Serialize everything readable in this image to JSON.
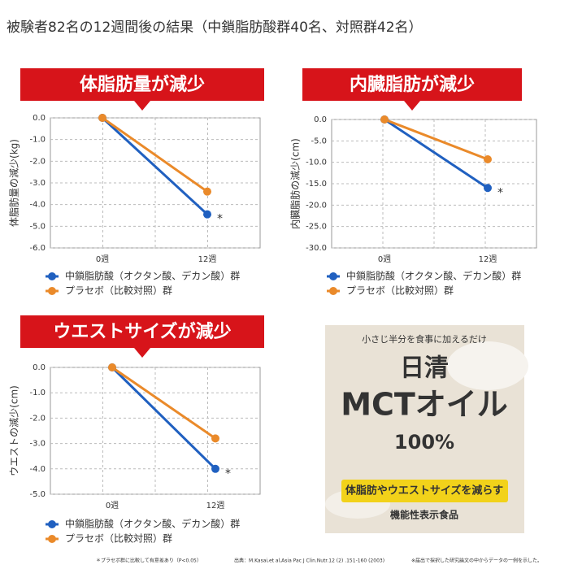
{
  "header": {
    "title": "被験者82名の12週間後の結果（中鎖脂肪酸群40名、対照群42名）"
  },
  "chart_data": [
    {
      "type": "line",
      "title": "体脂肪量が減少",
      "y_label": "体脂肪量の減少(kg)",
      "categories": [
        "0週",
        "12週"
      ],
      "series": [
        {
          "name": "中鎖脂肪酸（オクタン酸、デカン酸）群",
          "color": "#2060c0",
          "values": [
            0,
            -4.45
          ]
        },
        {
          "name": "プラセボ（比較対照）群",
          "color": "#ea8a2a",
          "values": [
            0,
            -3.4
          ]
        }
      ],
      "ylim": [
        -6,
        0
      ],
      "yticks": [
        {
          "value": 0,
          "label": "0.0"
        },
        {
          "value": -1,
          "label": "-1.0"
        },
        {
          "value": -2,
          "label": "-2.0"
        },
        {
          "value": -3,
          "label": "-3.0"
        },
        {
          "value": -4,
          "label": "-4.0"
        },
        {
          "value": -5,
          "label": "-5.0"
        },
        {
          "value": -6,
          "label": "-6.0"
        }
      ],
      "grid": true,
      "annotation": "*"
    },
    {
      "type": "line",
      "title": "内臓脂肪が減少",
      "y_label": "内臓脂肪の減少(cm)",
      "categories": [
        "0週",
        "12週"
      ],
      "series": [
        {
          "name": "中鎖脂肪酸（オクタン酸、デカン酸）群",
          "color": "#2060c0",
          "values": [
            0,
            -16
          ]
        },
        {
          "name": "プラセボ（比較対照）群",
          "color": "#ea8a2a",
          "values": [
            0,
            -9.3
          ]
        }
      ],
      "ylim": [
        -30,
        0
      ],
      "yticks": [
        {
          "value": 0,
          "label": "0.0"
        },
        {
          "value": -5,
          "label": "-5.0"
        },
        {
          "value": -10,
          "label": "-10.0"
        },
        {
          "value": -15,
          "label": "-15.0"
        },
        {
          "value": -20,
          "label": "-20.0"
        },
        {
          "value": -25,
          "label": "-25.0"
        },
        {
          "value": -30,
          "label": "-30.0"
        }
      ],
      "grid": true,
      "annotation": "*"
    },
    {
      "type": "line",
      "title": "ウエストサイズが減少",
      "y_label": "ウエストの減少(cm)",
      "categories": [
        "0週",
        "12週"
      ],
      "series": [
        {
          "name": "中鎖脂肪酸（オクタン酸、デカン酸）群",
          "color": "#2060c0",
          "values": [
            0,
            -4.0
          ]
        },
        {
          "name": "プラセボ（比較対照）群",
          "color": "#ea8a2a",
          "values": [
            0,
            -2.8
          ]
        }
      ],
      "ylim": [
        -5,
        0
      ],
      "yticks": [
        {
          "value": 0,
          "label": "0.0"
        },
        {
          "value": -1,
          "label": "-1.0"
        },
        {
          "value": -2,
          "label": "-2.0"
        },
        {
          "value": -3,
          "label": "-3.0"
        },
        {
          "value": -4,
          "label": "-4.0"
        },
        {
          "value": -5,
          "label": "-5.0"
        }
      ],
      "grid": true,
      "annotation": "*"
    }
  ],
  "product": {
    "tagline": "小さじ半分を食事に加えるだけ",
    "brand": "日清",
    "name": "MCTオイル",
    "purity": "100%",
    "claim": "体脂肪やウエストサイズを減らす",
    "category": "機能性表示食品"
  },
  "footnotes": [
    "＊プラセボ群に比較して有意差あり（P<0.05）",
    "出典：M.Kasai,et al,Asia Pac J Clin.Nutr.12 (2) .151-160 (2003)",
    "※届出で採択した研究論文の中からデータの一例を示した。"
  ]
}
